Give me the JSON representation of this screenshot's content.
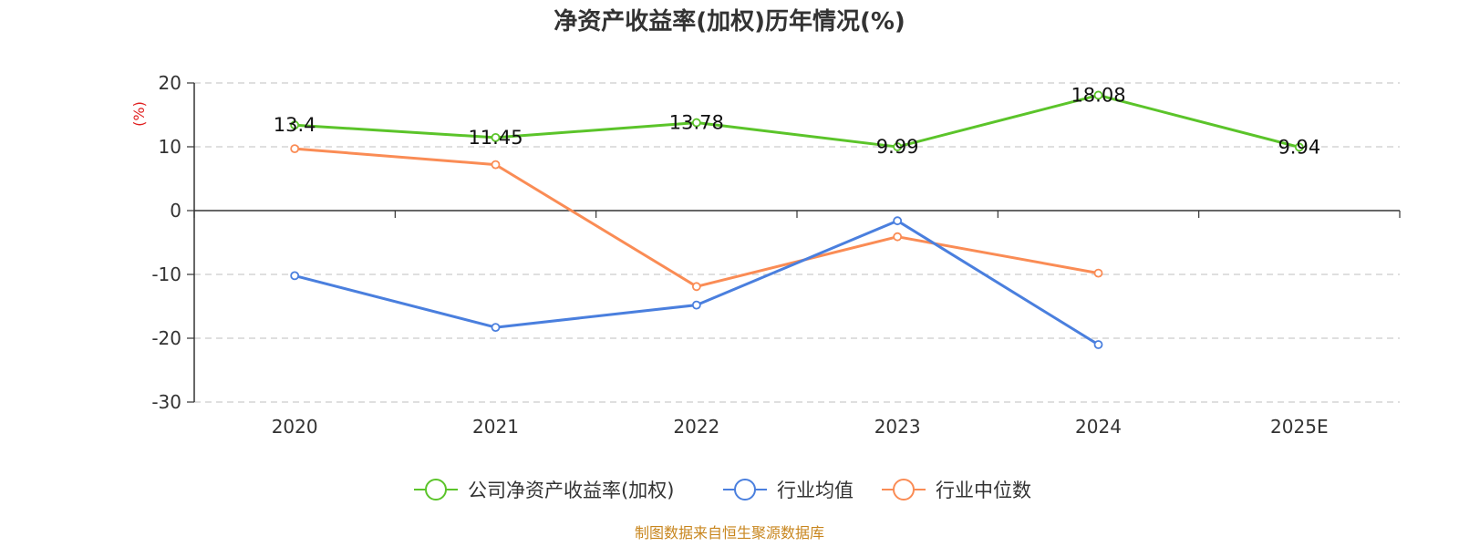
{
  "chart_data": {
    "type": "line",
    "title": "净资产收益率(加权)历年情况(%)",
    "ylabel": "(%)",
    "categories": [
      "2020",
      "2021",
      "2022",
      "2023",
      "2024",
      "2025E"
    ],
    "ylim": [
      -30,
      20
    ],
    "yticks": [
      20,
      10,
      0,
      -10,
      -20,
      -30
    ],
    "grid": true,
    "legend_position": "bottom",
    "series": [
      {
        "name": "公司净资产收益率(加权)",
        "color": "#5bc42a",
        "values": [
          13.4,
          11.45,
          13.78,
          9.99,
          18.08,
          9.94
        ],
        "labels": [
          "13.4",
          "11.45",
          "13.78",
          "9.99",
          "18.08",
          "9.94"
        ]
      },
      {
        "name": "行业均值",
        "color": "#4a7fde",
        "values": [
          -10.2,
          -18.3,
          -14.8,
          -1.6,
          -21.0,
          null
        ]
      },
      {
        "name": "行业中位数",
        "color": "#fa8c55",
        "values": [
          9.7,
          7.2,
          -11.9,
          -4.1,
          -9.8,
          null
        ]
      }
    ]
  },
  "source": "制图数据来自恒生聚源数据库",
  "colors": {
    "ylabel": "#e02020",
    "source": "#c8861e",
    "axis": "#333333",
    "grid": "#cccccc"
  }
}
